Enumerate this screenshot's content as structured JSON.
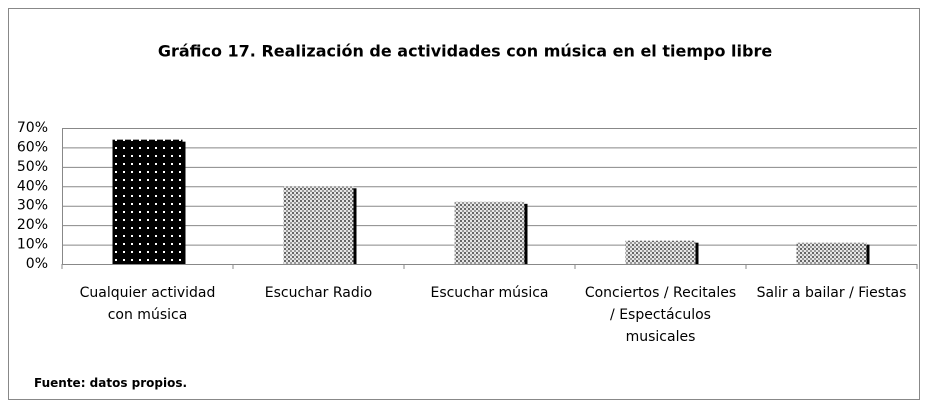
{
  "chart_data": {
    "type": "bar",
    "title": "Gráfico 17. Realización de actividades con música en el tiempo libre",
    "categories": [
      "Cualquier actividad con música",
      "Escuchar Radio",
      "Escuchar música",
      "Conciertos / Recitales / Espectáculos musicales",
      "Salir a bailar / Fiestas"
    ],
    "values": [
      64,
      40,
      32,
      12,
      11
    ],
    "ylim": [
      0,
      70
    ],
    "yticks": [
      {
        "value": 0,
        "label": "0%"
      },
      {
        "value": 10,
        "label": "10%"
      },
      {
        "value": 20,
        "label": "20%"
      },
      {
        "value": 30,
        "label": "30%"
      },
      {
        "value": 40,
        "label": "40%"
      },
      {
        "value": 50,
        "label": "50%"
      },
      {
        "value": 60,
        "label": "60%"
      },
      {
        "value": 70,
        "label": "70%"
      }
    ],
    "grid": true,
    "source": "Fuente: datos propios."
  }
}
